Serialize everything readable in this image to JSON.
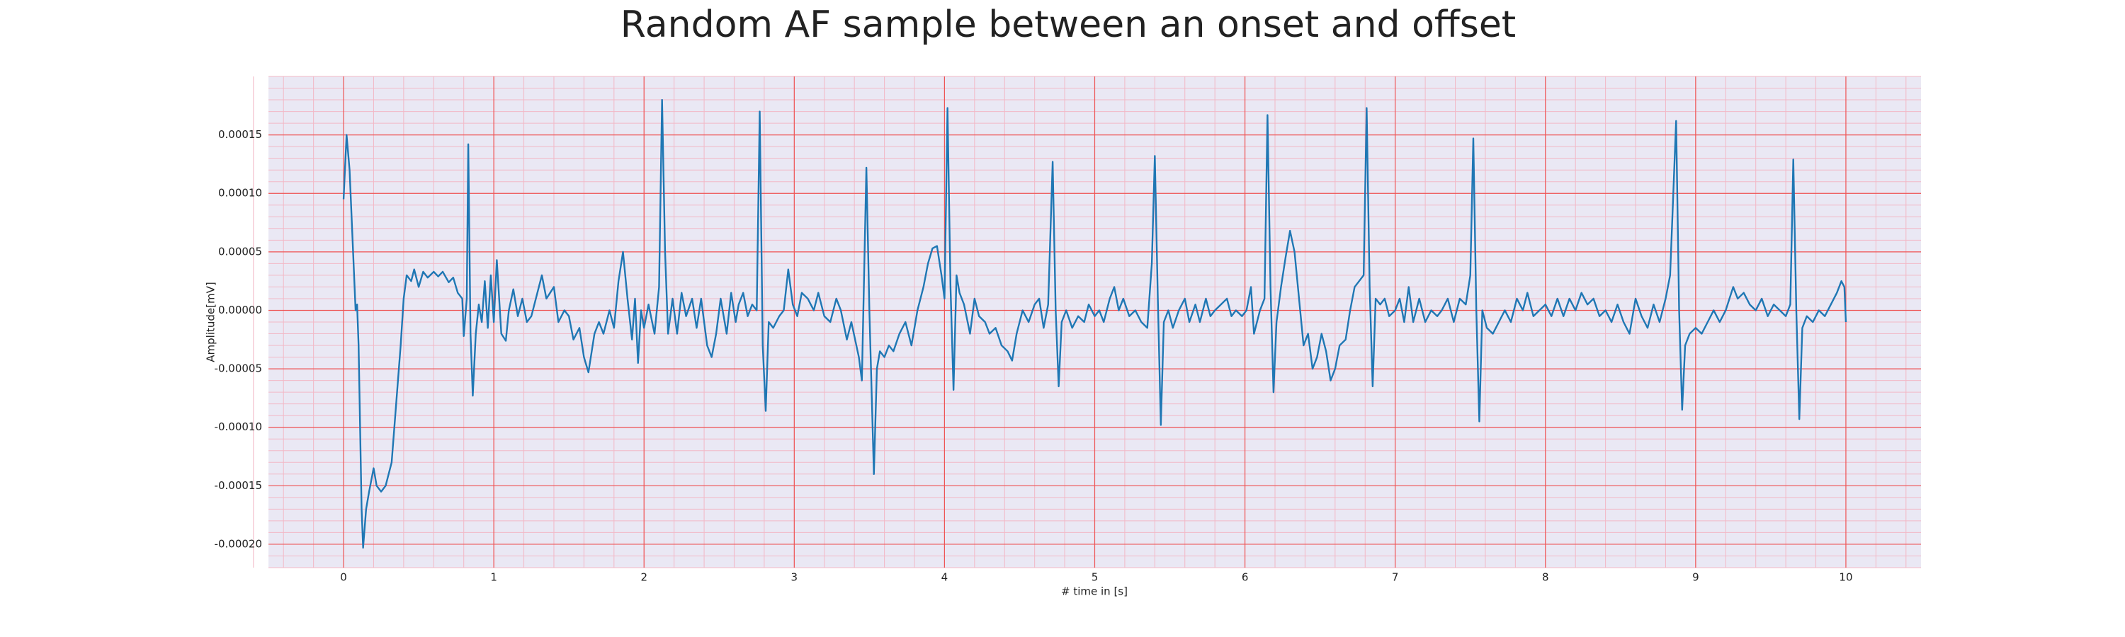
{
  "chart_data": {
    "type": "line",
    "title": "Random AF sample between an onset and offset",
    "x_label": "# time in [s]",
    "y_label": "Amplitude[mV]",
    "color": "#1f77b4",
    "grid": true,
    "xlim": [
      -0.5,
      10.5
    ],
    "xticks": [
      0,
      1,
      2,
      3,
      4,
      5,
      6,
      7,
      8,
      9,
      10
    ],
    "ylim": [
      -0.00022,
      0.0002
    ],
    "yticks": [
      {
        "value": -0.0002,
        "label": "-0.00020"
      },
      {
        "value": -0.00015,
        "label": "-0.00015"
      },
      {
        "value": -0.0001,
        "label": "-0.00010"
      },
      {
        "value": -5e-05,
        "label": "-0.00005"
      },
      {
        "value": 0,
        "label": "0.00000"
      },
      {
        "value": 5e-05,
        "label": "0.00005"
      },
      {
        "value": 0.0001,
        "label": "0.00010"
      },
      {
        "value": 0.00015,
        "label": "0.00015"
      }
    ],
    "x": [
      0,
      0.02,
      0.04,
      0.06,
      0.08,
      0.09,
      0.1,
      0.12,
      0.13,
      0.15,
      0.17,
      0.2,
      0.22,
      0.25,
      0.28,
      0.32,
      0.35,
      0.38,
      0.4,
      0.42,
      0.45,
      0.47,
      0.5,
      0.53,
      0.56,
      0.6,
      0.63,
      0.66,
      0.7,
      0.73,
      0.76,
      0.79,
      0.8,
      0.82,
      0.83,
      0.845,
      0.86,
      0.88,
      0.9,
      0.92,
      0.94,
      0.96,
      0.98,
      1.0,
      1.02,
      1.05,
      1.08,
      1.1,
      1.13,
      1.16,
      1.19,
      1.22,
      1.25,
      1.28,
      1.32,
      1.35,
      1.4,
      1.43,
      1.47,
      1.5,
      1.53,
      1.57,
      1.6,
      1.63,
      1.67,
      1.7,
      1.73,
      1.77,
      1.8,
      1.83,
      1.86,
      1.89,
      1.92,
      1.94,
      1.96,
      1.98,
      2.0,
      2.03,
      2.07,
      2.1,
      2.12,
      2.14,
      2.16,
      2.19,
      2.22,
      2.25,
      2.28,
      2.32,
      2.35,
      2.38,
      2.42,
      2.45,
      2.48,
      2.51,
      2.55,
      2.58,
      2.61,
      2.63,
      2.66,
      2.69,
      2.72,
      2.75,
      2.77,
      2.79,
      2.81,
      2.83,
      2.86,
      2.9,
      2.93,
      2.96,
      2.99,
      3.02,
      3.05,
      3.09,
      3.13,
      3.16,
      3.2,
      3.24,
      3.28,
      3.31,
      3.35,
      3.38,
      3.43,
      3.45,
      3.48,
      3.5,
      3.53,
      3.55,
      3.57,
      3.6,
      3.63,
      3.66,
      3.7,
      3.74,
      3.78,
      3.82,
      3.86,
      3.89,
      3.92,
      3.95,
      3.98,
      4.0,
      4.02,
      4.04,
      4.06,
      4.08,
      4.1,
      4.13,
      4.17,
      4.2,
      4.23,
      4.27,
      4.3,
      4.34,
      4.38,
      4.42,
      4.45,
      4.48,
      4.52,
      4.56,
      4.6,
      4.63,
      4.66,
      4.69,
      4.72,
      4.74,
      4.76,
      4.78,
      4.81,
      4.85,
      4.89,
      4.93,
      4.96,
      5.0,
      5.03,
      5.06,
      5.1,
      5.13,
      5.16,
      5.19,
      5.23,
      5.27,
      5.31,
      5.35,
      5.38,
      5.4,
      5.42,
      5.44,
      5.46,
      5.49,
      5.52,
      5.56,
      5.6,
      5.63,
      5.67,
      5.7,
      5.74,
      5.77,
      5.8,
      5.84,
      5.88,
      5.91,
      5.94,
      5.98,
      6.01,
      6.04,
      6.06,
      6.1,
      6.13,
      6.15,
      6.17,
      6.19,
      6.21,
      6.24,
      6.27,
      6.3,
      6.33,
      6.36,
      6.39,
      6.42,
      6.45,
      6.48,
      6.51,
      6.54,
      6.57,
      6.6,
      6.63,
      6.67,
      6.7,
      6.73,
      6.76,
      6.79,
      6.81,
      6.83,
      6.85,
      6.87,
      6.9,
      6.93,
      6.96,
      7.0,
      7.03,
      7.06,
      7.09,
      7.12,
      7.16,
      7.2,
      7.24,
      7.28,
      7.31,
      7.35,
      7.39,
      7.43,
      7.47,
      7.5,
      7.52,
      7.54,
      7.56,
      7.58,
      7.61,
      7.65,
      7.69,
      7.73,
      7.77,
      7.81,
      7.85,
      7.88,
      7.92,
      7.96,
      8.0,
      8.04,
      8.08,
      8.12,
      8.16,
      8.2,
      8.24,
      8.28,
      8.32,
      8.36,
      8.4,
      8.44,
      8.48,
      8.52,
      8.56,
      8.6,
      8.64,
      8.68,
      8.72,
      8.76,
      8.8,
      8.83,
      8.87,
      8.89,
      8.91,
      8.93,
      8.96,
      9.0,
      9.04,
      9.08,
      9.12,
      9.16,
      9.2,
      9.25,
      9.28,
      9.32,
      9.36,
      9.4,
      9.44,
      9.48,
      9.52,
      9.56,
      9.6,
      9.63,
      9.65,
      9.67,
      9.69,
      9.71,
      9.74,
      9.78,
      9.82,
      9.86,
      9.9,
      9.94,
      9.97,
      9.99,
      10.0
    ],
    "values": [
      9.5e-05,
      0.00015,
      0.00012,
      6e-05,
      0.0,
      5e-06,
      -3e-05,
      -0.00017,
      -0.000203,
      -0.00017,
      -0.000155,
      -0.000135,
      -0.00015,
      -0.000155,
      -0.00015,
      -0.00013,
      -8e-05,
      -3e-05,
      1e-05,
      3e-05,
      2.5e-05,
      3.5e-05,
      2e-05,
      3.3e-05,
      2.8e-05,
      3.3e-05,
      2.9e-05,
      3.3e-05,
      2.4e-05,
      2.8e-05,
      1.5e-05,
      1e-05,
      -2.2e-05,
      1e-05,
      0.000142,
      -2e-05,
      -7.3e-05,
      -2e-05,
      5e-06,
      -1e-05,
      2.5e-05,
      -1.5e-05,
      3e-05,
      -1e-05,
      4.3e-05,
      -2e-05,
      -2.6e-05,
      0.0,
      1.8e-05,
      -5e-06,
      1e-05,
      -1e-05,
      -5e-06,
      1e-05,
      3e-05,
      1e-05,
      2e-05,
      -1e-05,
      0.0,
      -5e-06,
      -2.5e-05,
      -1.5e-05,
      -4e-05,
      -5.3e-05,
      -2e-05,
      -1e-05,
      -2e-05,
      0.0,
      -1.5e-05,
      2.5e-05,
      5e-05,
      1e-05,
      -2.5e-05,
      1e-05,
      -4.5e-05,
      0.0,
      -1.5e-05,
      5e-06,
      -2e-05,
      2e-05,
      0.00018,
      5e-05,
      -2e-05,
      1e-05,
      -2e-05,
      1.5e-05,
      -5e-06,
      1e-05,
      -1.5e-05,
      1e-05,
      -3e-05,
      -4e-05,
      -2e-05,
      1e-05,
      -2e-05,
      1.5e-05,
      -1e-05,
      5e-06,
      1.5e-05,
      -5e-06,
      5e-06,
      0.0,
      0.00017,
      -3e-05,
      -8.6e-05,
      -1e-05,
      -1.5e-05,
      -5e-06,
      0.0,
      3.5e-05,
      5e-06,
      -5e-06,
      1.5e-05,
      1e-05,
      0.0,
      1.5e-05,
      -5e-06,
      -1e-05,
      1e-05,
      0.0,
      -2.5e-05,
      -1e-05,
      -4e-05,
      -6e-05,
      0.000122,
      0.0,
      -0.00014,
      -5e-05,
      -3.5e-05,
      -4e-05,
      -3e-05,
      -3.5e-05,
      -2e-05,
      -1e-05,
      -3e-05,
      0.0,
      2e-05,
      4e-05,
      5.3e-05,
      5.5e-05,
      3e-05,
      1e-05,
      0.000173,
      2e-05,
      -6.8e-05,
      3e-05,
      1.5e-05,
      5e-06,
      -2e-05,
      1e-05,
      -5e-06,
      -1e-05,
      -2e-05,
      -1.5e-05,
      -3e-05,
      -3.5e-05,
      -4.3e-05,
      -2e-05,
      0.0,
      -1e-05,
      5e-06,
      1e-05,
      -1.5e-05,
      5e-06,
      0.000127,
      0.0,
      -6.5e-05,
      -1e-05,
      0.0,
      -1.5e-05,
      -5e-06,
      -1e-05,
      5e-06,
      -5e-06,
      0.0,
      -1e-05,
      1e-05,
      2e-05,
      0.0,
      1e-05,
      -5e-06,
      0.0,
      -1e-05,
      -1.5e-05,
      4e-05,
      0.000132,
      1e-05,
      -9.8e-05,
      -1e-05,
      0.0,
      -1.5e-05,
      0.0,
      1e-05,
      -1e-05,
      5e-06,
      -1e-05,
      1e-05,
      -5e-06,
      0.0,
      5e-06,
      1e-05,
      -5e-06,
      0.0,
      -5e-06,
      0.0,
      2e-05,
      -2e-05,
      0.0,
      1e-05,
      0.000167,
      2e-05,
      -7e-05,
      -1e-05,
      2e-05,
      4.5e-05,
      6.8e-05,
      5e-05,
      1e-05,
      -3e-05,
      -2e-05,
      -5e-05,
      -4e-05,
      -2e-05,
      -3.5e-05,
      -6e-05,
      -5e-05,
      -3e-05,
      -2.5e-05,
      0.0,
      2e-05,
      2.5e-05,
      3e-05,
      0.000173,
      2e-05,
      -6.5e-05,
      1e-05,
      5e-06,
      1e-05,
      -5e-06,
      0.0,
      1e-05,
      -1e-05,
      2e-05,
      -1e-05,
      1e-05,
      -1e-05,
      0.0,
      -5e-06,
      0.0,
      1e-05,
      -1e-05,
      1e-05,
      5e-06,
      3e-05,
      0.000147,
      0.0,
      -9.5e-05,
      0.0,
      -1.5e-05,
      -2e-05,
      -1e-05,
      0.0,
      -1e-05,
      1e-05,
      0.0,
      1.5e-05,
      -5e-06,
      0.0,
      5e-06,
      -5e-06,
      1e-05,
      -5e-06,
      1e-05,
      0.0,
      1.5e-05,
      5e-06,
      1e-05,
      -5e-06,
      0.0,
      -1e-05,
      5e-06,
      -1e-05,
      -2e-05,
      1e-05,
      -5e-06,
      -1.5e-05,
      5e-06,
      -1e-05,
      1e-05,
      3e-05,
      0.000162,
      0.0,
      -8.5e-05,
      -3e-05,
      -2e-05,
      -1.5e-05,
      -2e-05,
      -1e-05,
      0.0,
      -1e-05,
      0.0,
      2e-05,
      1e-05,
      1.5e-05,
      5e-06,
      0.0,
      1e-05,
      -5e-06,
      5e-06,
      0.0,
      -5e-06,
      5e-06,
      0.000129,
      0.0,
      -9.3e-05,
      -1.5e-05,
      -5e-06,
      -1e-05,
      0.0,
      -5e-06,
      5e-06,
      1.5e-05,
      2.5e-05,
      2e-05,
      -1e-05
    ]
  }
}
